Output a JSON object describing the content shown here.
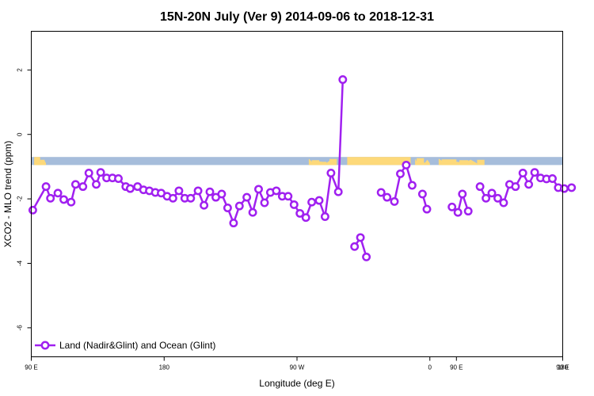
{
  "chart_data": {
    "type": "line",
    "title": "15N-20N July (Ver 9)   2014-09-06 to 2018-12-31",
    "xlabel": "Longitude (deg E)",
    "ylabel": "XCO2 - MLO trend (ppm)",
    "xlim": [
      90,
      450
    ],
    "ylim": [
      -6.9,
      3.2
    ],
    "xticks": [
      {
        "value": 90,
        "label": "90 E"
      },
      {
        "value": 180,
        "label": "180"
      },
      {
        "value": 270,
        "label": "90 W"
      },
      {
        "value": 360,
        "label": "0"
      },
      {
        "value": 450,
        "label": "90 E"
      }
    ],
    "xticks_extra": [
      {
        "value": 378,
        "label": "90 E"
      },
      {
        "value": 450,
        "label": "180"
      }
    ],
    "yticks": [
      {
        "value": 2,
        "label": "2"
      },
      {
        "value": 0,
        "label": "0"
      },
      {
        "value": -2,
        "label": "-2"
      },
      {
        "value": -4,
        "label": "-4"
      },
      {
        "value": -6,
        "label": "-6"
      }
    ],
    "grid": false,
    "legend_placement": "bottom-left",
    "land_ocean_band": {
      "y_range": [
        -0.95,
        -0.7
      ],
      "ocean_color": "#a6bddb",
      "land_color": "#fdd97a"
    },
    "series": [
      {
        "name": "Land (Nadir&Glint) and Ocean (Glint)",
        "color": "#a020f0",
        "segments": [
          [
            [
              91,
              -2.35
            ],
            [
              100,
              -1.62
            ],
            [
              103,
              -1.98
            ],
            [
              108,
              -1.82
            ],
            [
              112,
              -2.02
            ],
            [
              117,
              -2.1
            ],
            [
              120,
              -1.55
            ],
            [
              125,
              -1.62
            ],
            [
              129,
              -1.2
            ],
            [
              134,
              -1.55
            ],
            [
              137,
              -1.18
            ],
            [
              141,
              -1.35
            ],
            [
              145,
              -1.35
            ],
            [
              149,
              -1.37
            ],
            [
              154,
              -1.62
            ],
            [
              157,
              -1.68
            ],
            [
              162,
              -1.62
            ],
            [
              166,
              -1.72
            ],
            [
              170,
              -1.75
            ],
            [
              174,
              -1.8
            ],
            [
              178,
              -1.82
            ],
            [
              182,
              -1.92
            ],
            [
              186,
              -1.98
            ],
            [
              190,
              -1.75
            ],
            [
              194,
              -1.98
            ],
            [
              198,
              -1.98
            ],
            [
              203,
              -1.75
            ],
            [
              207,
              -2.2
            ],
            [
              211,
              -1.78
            ],
            [
              215,
              -1.95
            ],
            [
              219,
              -1.85
            ],
            [
              223,
              -2.28
            ],
            [
              227,
              -2.75
            ],
            [
              231,
              -2.22
            ],
            [
              236,
              -1.95
            ],
            [
              240,
              -2.42
            ],
            [
              244,
              -1.7
            ],
            [
              248,
              -2.12
            ],
            [
              252,
              -1.8
            ],
            [
              256,
              -1.75
            ],
            [
              260,
              -1.92
            ],
            [
              264,
              -1.92
            ],
            [
              268,
              -2.18
            ],
            [
              272,
              -2.45
            ],
            [
              276,
              -2.58
            ],
            [
              280,
              -2.1
            ],
            [
              285,
              -2.05
            ],
            [
              289,
              -2.55
            ],
            [
              293,
              -1.2
            ],
            [
              298,
              -1.78
            ],
            [
              301,
              1.7
            ]
          ],
          [
            [
              309,
              -3.48
            ],
            [
              313,
              -3.2
            ],
            [
              317,
              -3.8
            ]
          ],
          [
            [
              327,
              -1.8
            ],
            [
              331,
              -1.95
            ],
            [
              336,
              -2.08
            ],
            [
              340,
              -1.22
            ],
            [
              344,
              -0.95
            ],
            [
              348,
              -1.58
            ]
          ],
          [
            [
              355,
              -1.85
            ],
            [
              358,
              -2.32
            ]
          ],
          [
            [
              375,
              -2.25
            ],
            [
              379,
              -2.42
            ],
            [
              382,
              -1.85
            ],
            [
              386,
              -2.38
            ]
          ],
          [
            [
              394,
              -1.62
            ],
            [
              398,
              -1.98
            ],
            [
              402,
              -1.82
            ],
            [
              406,
              -1.98
            ],
            [
              410,
              -2.12
            ],
            [
              414,
              -1.55
            ],
            [
              418,
              -1.62
            ],
            [
              423,
              -1.2
            ],
            [
              427,
              -1.55
            ],
            [
              431,
              -1.18
            ],
            [
              435,
              -1.35
            ],
            [
              439,
              -1.38
            ],
            [
              443,
              -1.37
            ],
            [
              447,
              -1.65
            ],
            [
              451,
              -1.68
            ],
            [
              456,
              -1.65
            ]
          ]
        ]
      }
    ]
  }
}
